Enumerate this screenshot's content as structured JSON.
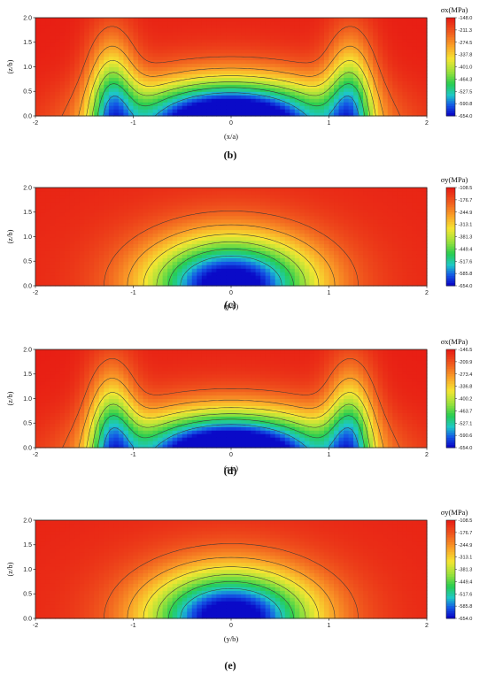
{
  "chart_data": [
    {
      "type": "heatmap",
      "panel_label": "(b)",
      "stress_component": "x",
      "xlabel": "(x/a)",
      "ylabel": "(z/b)",
      "xlim": [
        -2,
        2
      ],
      "ylim": [
        0,
        2
      ],
      "x_ticks": [
        "-2",
        "-1",
        "0",
        "1",
        "2"
      ],
      "y_ticks": [
        "0.0",
        "0.5",
        "1.0",
        "1.5",
        "2.0"
      ],
      "colorbar_title": "σx(MPa)",
      "colorbar_ticks": [
        "-148.0",
        "-211.3",
        "-274.5",
        "-337.8",
        "-401.0",
        "-464.3",
        "-527.5",
        "-590.8",
        "-654.0"
      ],
      "value_range": [
        -654.0,
        -148.0
      ],
      "pattern": "x",
      "contour_levels": [
        -220,
        -290,
        -360,
        -430,
        -500,
        -570
      ]
    },
    {
      "type": "heatmap",
      "panel_label": "(c)",
      "stress_component": "y",
      "xlabel": "(y/b)",
      "ylabel": "(z/b)",
      "xlim": [
        -2,
        2
      ],
      "ylim": [
        0,
        2
      ],
      "x_ticks": [
        "-2",
        "-1",
        "0",
        "1",
        "2"
      ],
      "y_ticks": [
        "0.0",
        "0.5",
        "1.0",
        "1.5",
        "2.0"
      ],
      "colorbar_title": "σy(MPa)",
      "colorbar_ticks": [
        "-108.5",
        "-176.7",
        "-244.9",
        "-313.1",
        "-381.3",
        "-449.4",
        "-517.6",
        "-585.8",
        "-654.0"
      ],
      "value_range": [
        -654.0,
        -108.5
      ],
      "pattern": "y",
      "contour_levels": [
        -190,
        -260,
        -330,
        -400,
        -470,
        -540
      ]
    },
    {
      "type": "heatmap",
      "panel_label": "(d)",
      "stress_component": "x",
      "xlabel": "(x/a)",
      "ylabel": "(z/b)",
      "xlim": [
        -2,
        2
      ],
      "ylim": [
        0,
        2
      ],
      "x_ticks": [
        "-2",
        "-1",
        "0",
        "1",
        "2"
      ],
      "y_ticks": [
        "0.0",
        "0.5",
        "1.0",
        "1.5",
        "2.0"
      ],
      "colorbar_title": "σx(MPa)",
      "colorbar_ticks": [
        "-146.5",
        "-209.9",
        "-273.4",
        "-336.8",
        "-400.2",
        "-463.7",
        "-527.1",
        "-590.6",
        "-654.0"
      ],
      "value_range": [
        -654.0,
        -146.5
      ],
      "pattern": "x",
      "contour_levels": [
        -220,
        -290,
        -360,
        -430,
        -500,
        -570
      ]
    },
    {
      "type": "heatmap",
      "panel_label": "(e)",
      "stress_component": "y",
      "xlabel": "(y/b)",
      "ylabel": "(z/b)",
      "xlim": [
        -2,
        2
      ],
      "ylim": [
        0,
        2
      ],
      "x_ticks": [
        "-2",
        "-1",
        "0",
        "1",
        "2"
      ],
      "y_ticks": [
        "0.0",
        "0.5",
        "1.0",
        "1.5",
        "2.0"
      ],
      "colorbar_title": "σy(MPa)",
      "colorbar_ticks": [
        "-108.5",
        "-176.7",
        "-244.9",
        "-313.1",
        "-381.3",
        "-449.4",
        "-517.6",
        "-585.8",
        "-654.0"
      ],
      "value_range": [
        -654.0,
        -108.5
      ],
      "pattern": "y",
      "contour_levels": [
        -190,
        -260,
        -330,
        -400,
        -470,
        -540
      ]
    }
  ]
}
